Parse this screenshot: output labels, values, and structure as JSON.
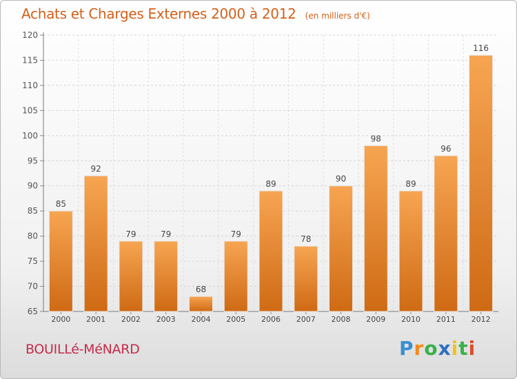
{
  "header": {
    "title": "Achats et Charges Externes 2000 à 2012",
    "subtitle": "(en milliers d'€)"
  },
  "footer": {
    "commune": "BOUILLé-MéNARD",
    "logo_text": "Proxiti"
  },
  "colors": {
    "bar_top": "#f7a552",
    "bar_bottom": "#cf6a14",
    "title": "#d2601a",
    "commune": "#c42b4a"
  },
  "chart_data": {
    "type": "bar",
    "title": "Achats et Charges Externes 2000 à 2012",
    "subtitle": "(en milliers d'€)",
    "categories": [
      "2000",
      "2001",
      "2002",
      "2003",
      "2004",
      "2005",
      "2006",
      "2007",
      "2008",
      "2009",
      "2010",
      "2011",
      "2012"
    ],
    "values": [
      85,
      92,
      79,
      79,
      68,
      79,
      89,
      78,
      90,
      98,
      89,
      96,
      116
    ],
    "ylim": [
      65,
      120
    ],
    "yticks": [
      65,
      70,
      75,
      80,
      85,
      90,
      95,
      100,
      105,
      110,
      115,
      120
    ],
    "grid": true,
    "data_labels": true
  }
}
